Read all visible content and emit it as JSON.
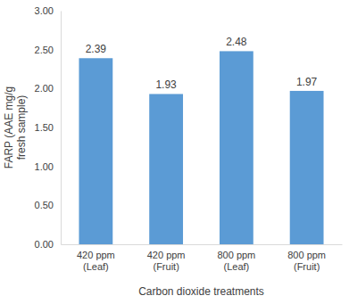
{
  "chart_data": {
    "type": "bar",
    "categories": [
      "420 ppm (Leaf)",
      "420 ppm (Fruit)",
      "800 ppm (Leaf)",
      "800 ppm (Fruit)"
    ],
    "values": [
      2.39,
      1.93,
      2.48,
      1.97
    ],
    "color": "#5b9bd5",
    "x_label": "Carbon dioxide treatments",
    "y_label": "FARP (AAE mg/g fresh sample)",
    "ylim": [
      0,
      3
    ],
    "yticks": [
      {
        "value": 0,
        "label": "0.00"
      },
      {
        "value": 0.5,
        "label": "0.50"
      },
      {
        "value": 1,
        "label": "1.00"
      },
      {
        "value": 1.5,
        "label": "1.50"
      },
      {
        "value": 2,
        "label": "2.00"
      },
      {
        "value": 2.5,
        "label": "2.50"
      },
      {
        "value": 3,
        "label": "3.00"
      }
    ],
    "grid": false,
    "data_labels": true
  }
}
